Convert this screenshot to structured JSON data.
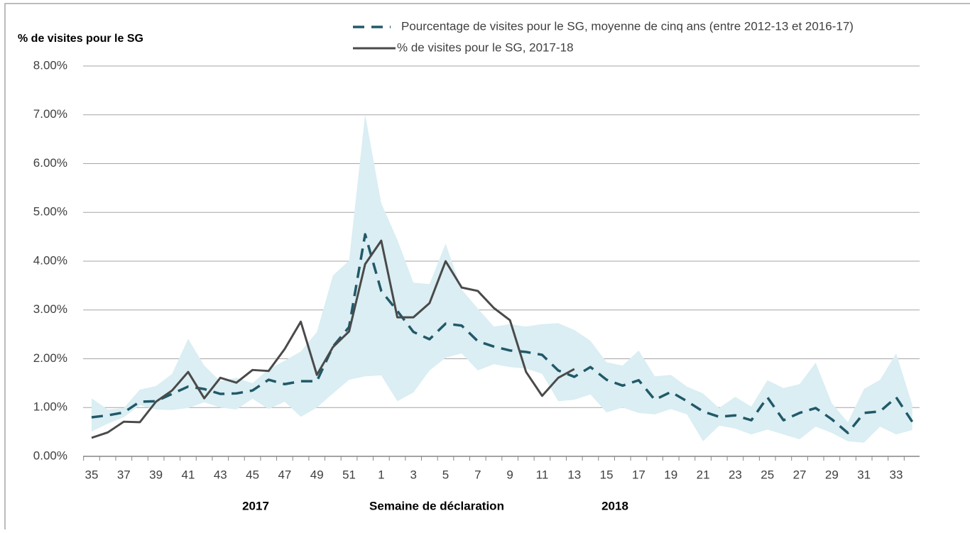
{
  "chart_data": {
    "type": "line",
    "y_title": "% de visites pour le SG",
    "x_title": "Semaine de déclaration",
    "year_labels": [
      "2017",
      "2018"
    ],
    "categories": [
      "35",
      null,
      "37",
      null,
      "39",
      null,
      "41",
      null,
      "43",
      null,
      "45",
      null,
      "47",
      null,
      "49",
      null,
      "51",
      null,
      "1",
      null,
      "3",
      null,
      "5",
      null,
      "7",
      null,
      "9",
      null,
      "11",
      null,
      "13",
      null,
      "15",
      null,
      "17",
      null,
      "19",
      null,
      "21",
      null,
      "23",
      null,
      "25",
      null,
      "27",
      null,
      "29",
      null,
      "31",
      null,
      "33",
      null
    ],
    "band": {
      "color": "#daeef3",
      "upper": [
        1.19,
        0.96,
        0.99,
        1.37,
        1.44,
        1.69,
        2.41,
        1.86,
        1.54,
        1.61,
        1.5,
        1.79,
        1.96,
        2.15,
        2.55,
        3.71,
        4.01,
        7.01,
        5.19,
        4.44,
        3.56,
        3.53,
        4.36,
        3.42,
        3.03,
        2.66,
        2.71,
        2.66,
        2.71,
        2.73,
        2.59,
        2.37,
        1.93,
        1.86,
        2.17,
        1.64,
        1.67,
        1.43,
        1.29,
        0.99,
        1.22,
        1.02,
        1.56,
        1.4,
        1.48,
        1.92,
        1.09,
        0.7,
        1.38,
        1.57,
        2.11,
        1.06
      ],
      "lower": [
        0.51,
        0.67,
        0.8,
        1.05,
        0.96,
        0.95,
        0.99,
        1.11,
        1.0,
        0.96,
        1.18,
        0.97,
        1.12,
        0.81,
        1.0,
        1.29,
        1.57,
        1.64,
        1.66,
        1.13,
        1.31,
        1.76,
        2.02,
        2.11,
        1.76,
        1.89,
        1.83,
        1.8,
        1.69,
        1.13,
        1.16,
        1.27,
        0.9,
        1.0,
        0.89,
        0.86,
        0.97,
        0.86,
        0.31,
        0.63,
        0.57,
        0.45,
        0.55,
        0.45,
        0.35,
        0.61,
        0.48,
        0.31,
        0.28,
        0.61,
        0.45,
        0.54
      ]
    },
    "series": [
      {
        "name": "Pourcentage de visites pour le SG, moyenne de cinq ans (entre 2012-13 et 2016-17)",
        "color": "#215968",
        "dashed": true,
        "values": [
          0.8,
          0.84,
          0.9,
          1.12,
          1.13,
          1.28,
          1.43,
          1.38,
          1.28,
          1.29,
          1.35,
          1.57,
          1.48,
          1.54,
          1.54,
          2.25,
          2.65,
          4.55,
          3.39,
          2.98,
          2.55,
          2.4,
          2.72,
          2.68,
          2.36,
          2.25,
          2.17,
          2.14,
          2.08,
          1.76,
          1.63,
          1.83,
          1.57,
          1.45,
          1.56,
          1.16,
          1.32,
          1.13,
          0.92,
          0.81,
          0.84,
          0.74,
          1.21,
          0.74,
          0.89,
          0.99,
          0.76,
          0.48,
          0.89,
          0.92,
          1.21,
          0.71
        ]
      },
      {
        "name": "% de visites pour le SG, 2017-18",
        "color": "#4a4a4a",
        "dashed": false,
        "values": [
          0.38,
          0.49,
          0.71,
          0.7,
          1.12,
          1.35,
          1.73,
          1.19,
          1.61,
          1.51,
          1.77,
          1.75,
          2.2,
          2.76,
          1.67,
          2.24,
          2.56,
          3.94,
          4.42,
          2.85,
          2.85,
          3.14,
          4.0,
          3.46,
          3.39,
          3.04,
          2.79,
          1.73,
          1.24,
          1.61,
          1.79,
          null,
          null,
          null,
          null,
          null,
          null,
          null,
          null,
          null,
          null,
          null,
          null,
          null,
          null,
          null,
          null,
          null,
          null,
          null,
          null,
          null
        ]
      }
    ],
    "ylim": [
      0,
      8
    ],
    "yticks": [
      {
        "value": 0,
        "label": "0.00%"
      },
      {
        "value": 1,
        "label": "1.00%"
      },
      {
        "value": 2,
        "label": "2.00%"
      },
      {
        "value": 3,
        "label": "3.00%"
      },
      {
        "value": 4,
        "label": "4.00%"
      },
      {
        "value": 5,
        "label": "5.00%"
      },
      {
        "value": 6,
        "label": "6.00%"
      },
      {
        "value": 7,
        "label": "7.00%"
      },
      {
        "value": 8,
        "label": "8.00%"
      }
    ],
    "grid": true,
    "legend": "top"
  }
}
